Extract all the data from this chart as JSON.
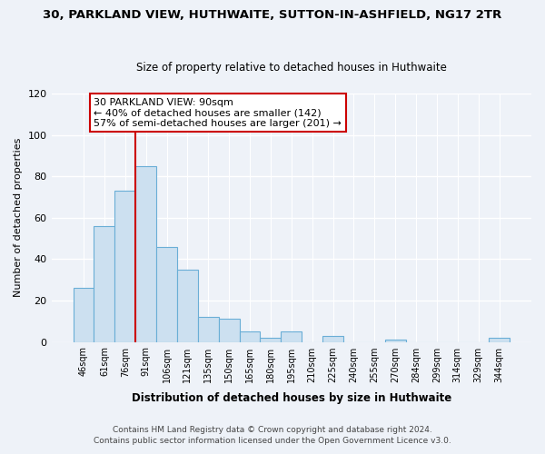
{
  "title": "30, PARKLAND VIEW, HUTHWAITE, SUTTON-IN-ASHFIELD, NG17 2TR",
  "subtitle": "Size of property relative to detached houses in Huthwaite",
  "xlabel": "Distribution of detached houses by size in Huthwaite",
  "ylabel": "Number of detached properties",
  "bar_labels": [
    "46sqm",
    "61sqm",
    "76sqm",
    "91sqm",
    "106sqm",
    "121sqm",
    "135sqm",
    "150sqm",
    "165sqm",
    "180sqm",
    "195sqm",
    "210sqm",
    "225sqm",
    "240sqm",
    "255sqm",
    "270sqm",
    "284sqm",
    "299sqm",
    "314sqm",
    "329sqm",
    "344sqm"
  ],
  "bar_heights": [
    26,
    56,
    73,
    85,
    46,
    35,
    12,
    11,
    5,
    2,
    5,
    0,
    3,
    0,
    0,
    1,
    0,
    0,
    0,
    0,
    2
  ],
  "bar_color": "#cce0f0",
  "bar_edge_color": "#6aaed6",
  "vline_color": "#cc0000",
  "ylim": [
    0,
    120
  ],
  "yticks": [
    0,
    20,
    40,
    60,
    80,
    100,
    120
  ],
  "annotation_text": "30 PARKLAND VIEW: 90sqm\n← 40% of detached houses are smaller (142)\n57% of semi-detached houses are larger (201) →",
  "annotation_box_color": "#ffffff",
  "annotation_box_edge_color": "#cc0000",
  "footer_line1": "Contains HM Land Registry data © Crown copyright and database right 2024.",
  "footer_line2": "Contains public sector information licensed under the Open Government Licence v3.0.",
  "background_color": "#eef2f8"
}
